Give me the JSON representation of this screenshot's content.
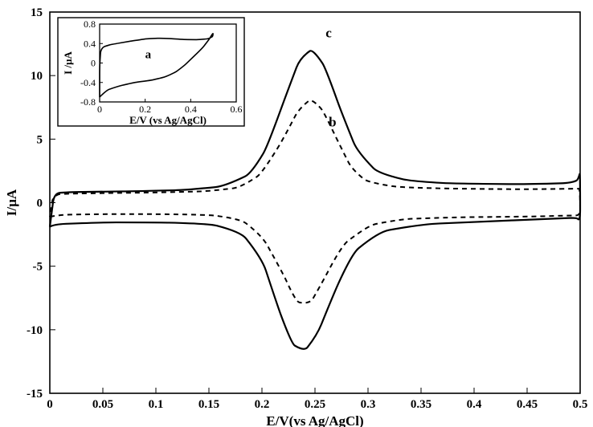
{
  "main": {
    "xlabel": "E/V(vs Ag/AgCl)",
    "ylabel": "I/µA",
    "label_fontsize": 17,
    "label_fontweight": "bold",
    "tick_fontsize": 15,
    "tick_fontweight": "bold",
    "xlim": [
      0,
      0.5
    ],
    "ylim": [
      -15,
      15
    ],
    "xticks": [
      0,
      0.05,
      0.1,
      0.15,
      0.2,
      0.25,
      0.3,
      0.35,
      0.4,
      0.45,
      0.5
    ],
    "yticks": [
      -15,
      -10,
      -5,
      0,
      5,
      10,
      15
    ],
    "border_color": "#000000",
    "background_color": "#ffffff",
    "curve_b": {
      "style": "dashed",
      "color": "#000000",
      "width": 2,
      "annotation": "b",
      "points": [
        [
          0.0,
          -1.1
        ],
        [
          0.01,
          -0.95
        ],
        [
          0.05,
          -0.9
        ],
        [
          0.1,
          -0.9
        ],
        [
          0.15,
          -0.95
        ],
        [
          0.18,
          -1.3
        ],
        [
          0.2,
          -2.6
        ],
        [
          0.22,
          -5.6
        ],
        [
          0.232,
          -7.8
        ],
        [
          0.245,
          -8.0
        ],
        [
          0.258,
          -6.1
        ],
        [
          0.275,
          -3.4
        ],
        [
          0.3,
          -1.8
        ],
        [
          0.33,
          -1.3
        ],
        [
          0.38,
          -1.15
        ],
        [
          0.45,
          -1.1
        ],
        [
          0.495,
          -1.0
        ],
        [
          0.5,
          -1.0
        ],
        [
          0.5,
          1.1
        ],
        [
          0.495,
          1.1
        ],
        [
          0.45,
          1.05
        ],
        [
          0.38,
          1.1
        ],
        [
          0.33,
          1.2
        ],
        [
          0.3,
          1.6
        ],
        [
          0.285,
          2.6
        ],
        [
          0.27,
          5.1
        ],
        [
          0.258,
          7.2
        ],
        [
          0.247,
          8.2
        ],
        [
          0.235,
          7.4
        ],
        [
          0.22,
          5.0
        ],
        [
          0.2,
          2.3
        ],
        [
          0.18,
          1.2
        ],
        [
          0.15,
          0.9
        ],
        [
          0.1,
          0.8
        ],
        [
          0.05,
          0.75
        ],
        [
          0.01,
          0.7
        ],
        [
          0.003,
          0.5
        ],
        [
          0.0,
          -1.1
        ]
      ]
    },
    "curve_c": {
      "style": "solid",
      "color": "#000000",
      "width": 2.2,
      "annotation": "c",
      "points": [
        [
          0.0,
          -1.9
        ],
        [
          0.004,
          -1.7
        ],
        [
          0.05,
          -1.55
        ],
        [
          0.1,
          -1.55
        ],
        [
          0.15,
          -1.65
        ],
        [
          0.18,
          -2.3
        ],
        [
          0.2,
          -4.4
        ],
        [
          0.215,
          -8.2
        ],
        [
          0.228,
          -11.1
        ],
        [
          0.24,
          -11.7
        ],
        [
          0.252,
          -10.4
        ],
        [
          0.268,
          -7.1
        ],
        [
          0.285,
          -4.0
        ],
        [
          0.31,
          -2.3
        ],
        [
          0.35,
          -1.7
        ],
        [
          0.42,
          -1.45
        ],
        [
          0.49,
          -1.2
        ],
        [
          0.497,
          -1.2
        ],
        [
          0.5,
          -1.5
        ],
        [
          0.5,
          2.4
        ],
        [
          0.498,
          1.8
        ],
        [
          0.492,
          1.55
        ],
        [
          0.45,
          1.45
        ],
        [
          0.38,
          1.5
        ],
        [
          0.34,
          1.7
        ],
        [
          0.31,
          2.3
        ],
        [
          0.29,
          4.0
        ],
        [
          0.275,
          7.1
        ],
        [
          0.26,
          10.6
        ],
        [
          0.248,
          12.1
        ],
        [
          0.236,
          11.4
        ],
        [
          0.222,
          8.3
        ],
        [
          0.205,
          4.4
        ],
        [
          0.19,
          2.3
        ],
        [
          0.165,
          1.3
        ],
        [
          0.13,
          1.0
        ],
        [
          0.08,
          0.9
        ],
        [
          0.03,
          0.85
        ],
        [
          0.01,
          0.8
        ],
        [
          0.004,
          0.65
        ],
        [
          0.0,
          -1.9
        ]
      ]
    },
    "annot_b_pos": [
      0.263,
      6.0
    ],
    "annot_c_pos": [
      0.26,
      13.0
    ]
  },
  "inset": {
    "xlabel": "E/V (vs Ag/AgCl)",
    "ylabel": "I /µA",
    "annotation": "a",
    "label_fontsize": 13,
    "label_fontweight": "bold",
    "tick_fontsize": 12,
    "xlim": [
      0,
      0.6
    ],
    "ylim": [
      -0.8,
      0.8
    ],
    "xticks": [
      0,
      0.2,
      0.4,
      0.6
    ],
    "yticks": [
      -0.8,
      -0.4,
      0,
      0.4,
      0.8
    ],
    "border_color": "#000000",
    "curve": {
      "color": "#000000",
      "width": 1.6,
      "points": [
        [
          0.0,
          -0.7
        ],
        [
          0.03,
          -0.56
        ],
        [
          0.08,
          -0.48
        ],
        [
          0.15,
          -0.4
        ],
        [
          0.22,
          -0.36
        ],
        [
          0.28,
          -0.3
        ],
        [
          0.33,
          -0.2
        ],
        [
          0.37,
          -0.06
        ],
        [
          0.41,
          0.12
        ],
        [
          0.45,
          0.3
        ],
        [
          0.48,
          0.48
        ],
        [
          0.498,
          0.62
        ],
        [
          0.498,
          0.55
        ],
        [
          0.48,
          0.5
        ],
        [
          0.44,
          0.48
        ],
        [
          0.38,
          0.48
        ],
        [
          0.32,
          0.5
        ],
        [
          0.27,
          0.51
        ],
        [
          0.21,
          0.5
        ],
        [
          0.15,
          0.46
        ],
        [
          0.1,
          0.42
        ],
        [
          0.05,
          0.38
        ],
        [
          0.02,
          0.34
        ],
        [
          0.005,
          0.28
        ],
        [
          0.0,
          -0.05
        ],
        [
          0.0,
          -0.7
        ]
      ]
    },
    "annot_a_pos": [
      0.2,
      0.1
    ],
    "outer_box_color": "#000000"
  }
}
